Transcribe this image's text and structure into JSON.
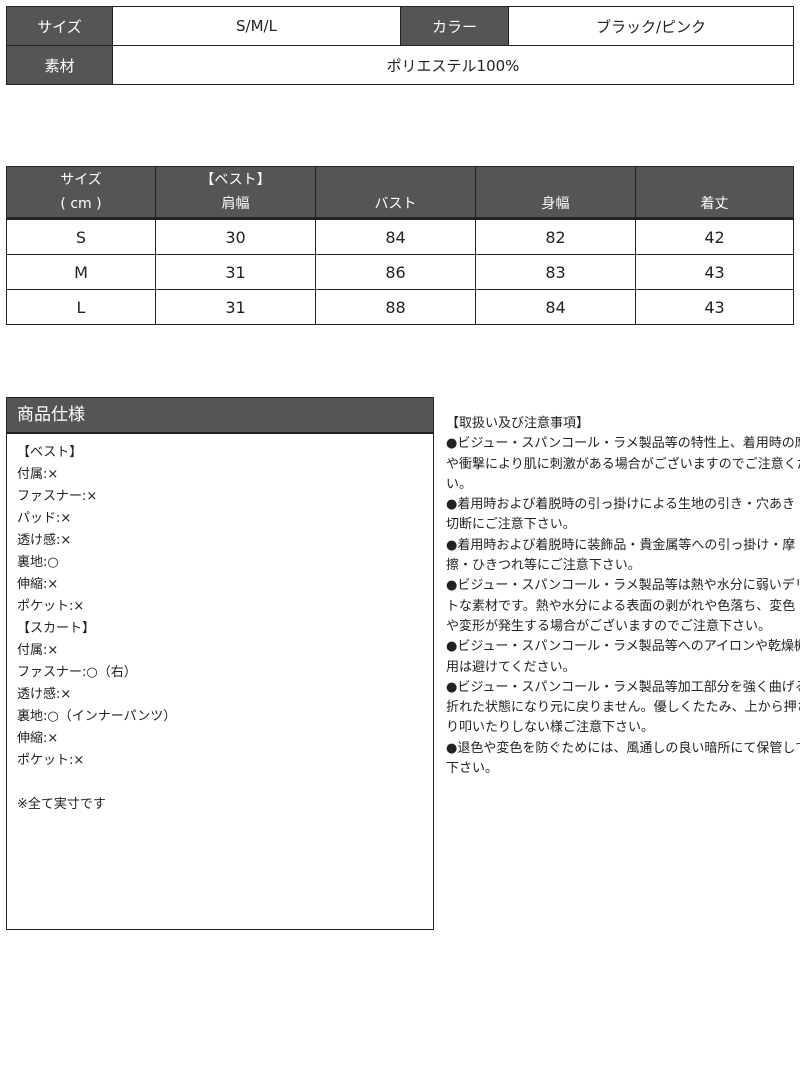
{
  "spec": {
    "size_label": "サイズ",
    "size_value": "S/M/L",
    "color_label": "カラー",
    "color_value": "ブラック/ピンク",
    "material_label": "素材",
    "material_value": "ポリエステル100%"
  },
  "size_table": {
    "headers": [
      [
        "サイズ",
        "( cm )"
      ],
      [
        "【ベスト】",
        "肩幅"
      ],
      [
        "",
        "バスト"
      ],
      [
        "",
        "身幅"
      ],
      [
        "",
        "着丈"
      ]
    ],
    "rows": [
      [
        "S",
        "30",
        "84",
        "82",
        "42"
      ],
      [
        "M",
        "31",
        "86",
        "83",
        "43"
      ],
      [
        "L",
        "31",
        "88",
        "84",
        "43"
      ]
    ]
  },
  "product_spec": {
    "title": "商品仕様",
    "lines": [
      "【ベスト】",
      "付属:×",
      "ファスナー:×",
      "パッド:×",
      "透け感:×",
      "裏地:○",
      "伸縮:×",
      "ポケット:×",
      "【スカート】",
      "付属:×",
      "ファスナー:○（右）",
      "透け感:×",
      "裏地:○（インナーパンツ）",
      "伸縮:×",
      "ポケット:×",
      "",
      "※全て実寸です"
    ]
  },
  "notes": {
    "lines": [
      "【取扱い及び注意事項】",
      "●ビジュー・スパンコール・ラメ製品等の特性上、着用時の摩擦",
      "や衝撃により肌に刺激がある場合がございますのでご注意くださ",
      "い。",
      "●着用時および着脱時の引っ掛けによる生地の引き・穴あき・",
      "切断にご注意下さい。",
      "●着用時および着脱時に装飾品・貴金属等への引っ掛け・摩",
      "擦・ひきつれ等にご注意下さい。",
      "●ビジュー・スパンコール・ラメ製品等は熱や水分に弱いデリケー",
      "トな素材です。熱や水分による表面の剥がれや色落ち、変色",
      "や変形が発生する場合がございますのでご注意下さい。",
      "●ビジュー・スパンコール・ラメ製品等へのアイロンや乾燥機の使",
      "用は避けてください。",
      "●ビジュー・スパンコール・ラメ製品等加工部分を強く曲げると",
      "折れた状態になり元に戻りません。優しくたたみ、上から押さえた",
      "り叩いたりしない様ご注意下さい。",
      "●退色や変色を防ぐためには、風通しの良い暗所にて保管して",
      "下さい。"
    ]
  }
}
